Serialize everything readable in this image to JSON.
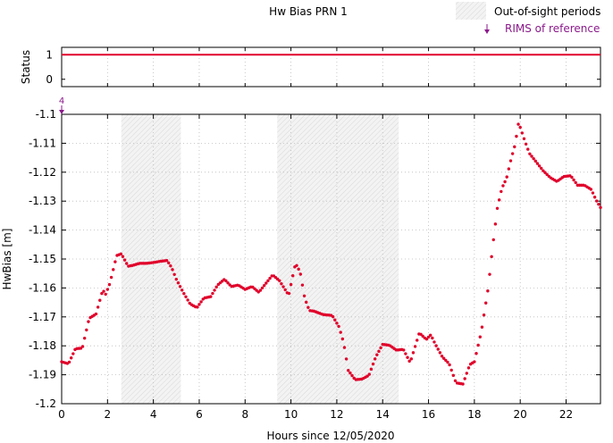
{
  "chart_data": [
    {
      "panel": "status",
      "type": "line",
      "ylabel": "Status",
      "yticks": [
        "0",
        "1"
      ],
      "ylim": [
        -0.3,
        1.3
      ],
      "xlim": [
        0,
        23.5
      ],
      "series": [
        {
          "x": [
            0,
            23.5
          ],
          "values": [
            1,
            1
          ],
          "color": "#e0002a"
        }
      ],
      "grid": true
    },
    {
      "panel": "hwbias",
      "type": "scatter",
      "title": "Hw Bias PRN 1",
      "xlabel": "Hours since 12/05/2020",
      "ylabel": "HwBias [m]",
      "xlim": [
        0,
        23.5
      ],
      "ylim": [
        -1.2,
        -1.1
      ],
      "xticks": [
        "0",
        "2",
        "4",
        "6",
        "8",
        "10",
        "12",
        "14",
        "16",
        "18",
        "20",
        "22"
      ],
      "yticks": [
        "-1.1",
        "-1.11",
        "-1.12",
        "-1.13",
        "-1.14",
        "-1.15",
        "-1.16",
        "-1.17",
        "-1.18",
        "-1.19",
        "-1.2"
      ],
      "grid": true,
      "legend": {
        "placement": "top-right",
        "entries": [
          {
            "label": "Out-of-sight periods",
            "kind": "shaded"
          },
          {
            "label": "RIMS of reference",
            "kind": "arrow",
            "color": "#8b1a8b"
          }
        ]
      },
      "shaded_periods": [
        [
          2.6,
          5.2
        ],
        [
          9.4,
          14.7
        ]
      ],
      "reference_markers": [
        {
          "x": 0,
          "label": "4"
        }
      ],
      "point_color": "#e0002a",
      "series": [
        {
          "x": [
            0,
            0.3,
            0.6,
            0.9,
            1.2,
            1.5,
            1.8,
            1.9,
            2.1,
            2.4,
            2.6,
            2.9,
            3.1,
            3.4,
            3.7,
            4.0,
            4.3,
            4.6,
            4.8,
            5.0,
            5.3,
            5.6,
            5.9,
            6.2,
            6.5,
            6.8,
            7.1,
            7.4,
            7.7,
            8.0,
            8.3,
            8.6,
            8.9,
            9.2,
            9.5,
            9.9,
            10.2,
            10.4,
            10.6,
            10.8,
            11.0,
            11.4,
            11.8,
            12.1,
            12.3,
            12.5,
            12.8,
            13.1,
            13.4,
            13.7,
            14.0,
            14.3,
            14.6,
            14.9,
            15.2,
            15.6,
            15.9,
            16.1,
            16.3,
            16.6,
            16.9,
            17.2,
            17.5,
            17.8,
            18.0,
            18.3,
            18.6,
            18.8,
            19.0,
            19.2,
            19.4,
            19.6,
            19.8,
            19.9,
            20.0,
            20.2,
            20.4,
            20.7,
            21.0,
            21.3,
            21.6,
            21.9,
            22.2,
            22.5,
            22.8,
            23.1,
            23.3,
            23.5
          ],
          "values": [
            -1.1855,
            -1.1862,
            -1.181,
            -1.1808,
            -1.1705,
            -1.169,
            -1.1605,
            -1.1625,
            -1.1585,
            -1.1488,
            -1.1482,
            -1.1525,
            -1.1522,
            -1.1515,
            -1.1515,
            -1.1512,
            -1.1508,
            -1.1505,
            -1.153,
            -1.157,
            -1.1615,
            -1.1655,
            -1.1668,
            -1.1635,
            -1.163,
            -1.159,
            -1.157,
            -1.1595,
            -1.159,
            -1.1605,
            -1.1595,
            -1.1615,
            -1.1585,
            -1.1555,
            -1.1575,
            -1.1625,
            -1.1515,
            -1.1545,
            -1.1635,
            -1.1678,
            -1.168,
            -1.1692,
            -1.1695,
            -1.1735,
            -1.179,
            -1.1885,
            -1.1917,
            -1.1915,
            -1.1902,
            -1.1838,
            -1.1795,
            -1.1798,
            -1.1815,
            -1.1812,
            -1.1858,
            -1.1755,
            -1.1778,
            -1.1762,
            -1.1795,
            -1.1838,
            -1.1862,
            -1.1928,
            -1.1932,
            -1.1865,
            -1.1855,
            -1.1752,
            -1.1602,
            -1.1455,
            -1.1325,
            -1.1255,
            -1.1222,
            -1.1155,
            -1.1098,
            -1.1032,
            -1.1045,
            -1.1092,
            -1.1135,
            -1.1165,
            -1.1195,
            -1.1218,
            -1.1232,
            -1.1215,
            -1.1212,
            -1.1245,
            -1.1245,
            -1.126,
            -1.1295,
            -1.1322
          ]
        }
      ]
    }
  ]
}
